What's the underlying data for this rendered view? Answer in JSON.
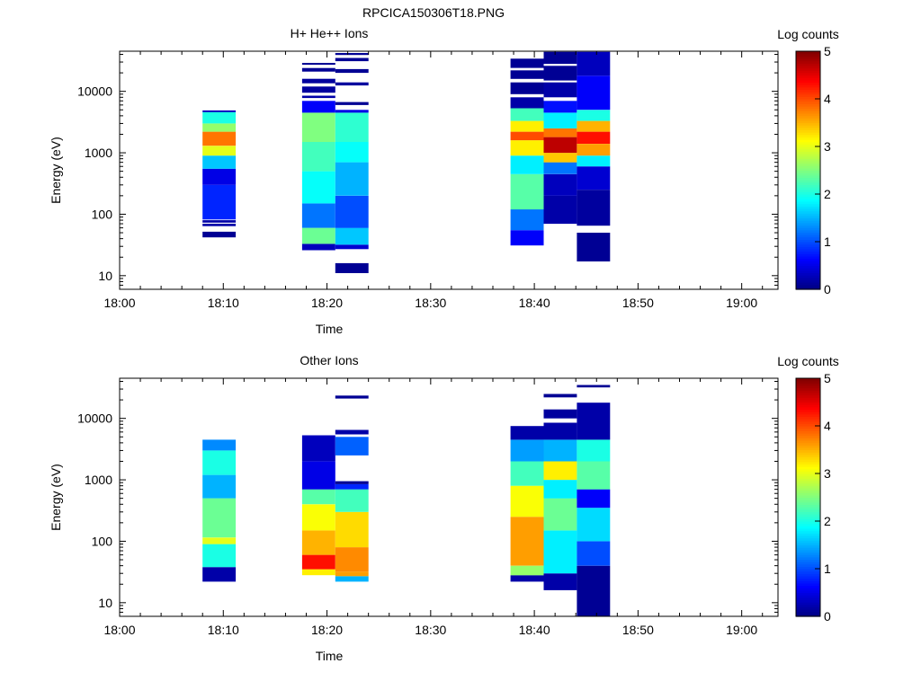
{
  "figure": {
    "title": "RPCICA150306T18.PNG"
  },
  "colors": {
    "background": "#ffffff",
    "axis": "#000000",
    "colormap": "jet"
  },
  "chart_data": [
    {
      "type": "heatmap",
      "title": "H+ He++ Ions",
      "xlabel": "Time",
      "ylabel": "Energy (eV)",
      "x_ticks": [
        "18:00",
        "18:10",
        "18:20",
        "18:30",
        "18:40",
        "18:50",
        "19:00"
      ],
      "x_range_minutes": [
        0,
        63.5
      ],
      "y_scale": "log",
      "y_ticks": [
        "10",
        "100",
        "1000",
        "10000"
      ],
      "y_range_eV": [
        6,
        45000
      ],
      "colorbar": {
        "label": "Log counts",
        "ticks": [
          "0",
          "1",
          "2",
          "3",
          "4",
          "5"
        ],
        "range": [
          0,
          5
        ]
      },
      "columns": [
        {
          "t_start": 8.0,
          "t_end": 11.2,
          "segments": [
            {
              "e_lo": 42,
              "e_hi": 52,
              "v": 0.1
            },
            {
              "e_lo": 64,
              "e_hi": 70,
              "v": 0.2
            },
            {
              "e_lo": 73,
              "e_hi": 80,
              "v": 0.2
            },
            {
              "e_lo": 82,
              "e_hi": 300,
              "v": 0.8
            },
            {
              "e_lo": 300,
              "e_hi": 550,
              "v": 0.5
            },
            {
              "e_lo": 550,
              "e_hi": 900,
              "v": 1.6
            },
            {
              "e_lo": 900,
              "e_hi": 1300,
              "v": 3.0
            },
            {
              "e_lo": 1300,
              "e_hi": 2200,
              "v": 3.8
            },
            {
              "e_lo": 2200,
              "e_hi": 3000,
              "v": 2.6
            },
            {
              "e_lo": 3000,
              "e_hi": 4600,
              "v": 2.0
            },
            {
              "e_lo": 4600,
              "e_hi": 4900,
              "v": 0.3
            }
          ]
        },
        {
          "t_start": 17.6,
          "t_end": 20.8,
          "segments": [
            {
              "e_lo": 26,
              "e_hi": 33,
              "v": 0.3
            },
            {
              "e_lo": 33,
              "e_hi": 60,
              "v": 2.4
            },
            {
              "e_lo": 60,
              "e_hi": 150,
              "v": 1.2
            },
            {
              "e_lo": 150,
              "e_hi": 500,
              "v": 1.9
            },
            {
              "e_lo": 500,
              "e_hi": 1500,
              "v": 2.2
            },
            {
              "e_lo": 1500,
              "e_hi": 4500,
              "v": 2.5
            },
            {
              "e_lo": 4500,
              "e_hi": 7000,
              "v": 0.6
            },
            {
              "e_lo": 7800,
              "e_hi": 8500,
              "v": 0.2
            },
            {
              "e_lo": 9500,
              "e_hi": 12000,
              "v": 0.15
            },
            {
              "e_lo": 13500,
              "e_hi": 16000,
              "v": 0.15
            },
            {
              "e_lo": 21000,
              "e_hi": 24000,
              "v": 0.1
            },
            {
              "e_lo": 27000,
              "e_hi": 29000,
              "v": 0.1
            }
          ]
        },
        {
          "t_start": 20.8,
          "t_end": 24.0,
          "segments": [
            {
              "e_lo": 11,
              "e_hi": 16,
              "v": 0.1
            },
            {
              "e_lo": 27,
              "e_hi": 32,
              "v": 0.4
            },
            {
              "e_lo": 32,
              "e_hi": 60,
              "v": 1.6
            },
            {
              "e_lo": 60,
              "e_hi": 200,
              "v": 1.0
            },
            {
              "e_lo": 200,
              "e_hi": 700,
              "v": 1.5
            },
            {
              "e_lo": 700,
              "e_hi": 1500,
              "v": 1.9
            },
            {
              "e_lo": 1500,
              "e_hi": 4500,
              "v": 2.1
            },
            {
              "e_lo": 4500,
              "e_hi": 5000,
              "v": 0.5
            },
            {
              "e_lo": 6000,
              "e_hi": 6700,
              "v": 0.1
            },
            {
              "e_lo": 12500,
              "e_hi": 14000,
              "v": 0.15
            },
            {
              "e_lo": 20000,
              "e_hi": 23000,
              "v": 0.1
            },
            {
              "e_lo": 31000,
              "e_hi": 35000,
              "v": 0.1
            },
            {
              "e_lo": 39000,
              "e_hi": 42000,
              "v": 0.1
            }
          ]
        },
        {
          "t_start": 37.7,
          "t_end": 40.9,
          "segments": [
            {
              "e_lo": 31,
              "e_hi": 55,
              "v": 0.6
            },
            {
              "e_lo": 55,
              "e_hi": 120,
              "v": 1.2
            },
            {
              "e_lo": 120,
              "e_hi": 450,
              "v": 2.3
            },
            {
              "e_lo": 450,
              "e_hi": 900,
              "v": 1.8
            },
            {
              "e_lo": 900,
              "e_hi": 1600,
              "v": 3.2
            },
            {
              "e_lo": 1600,
              "e_hi": 2200,
              "v": 4.0
            },
            {
              "e_lo": 2200,
              "e_hi": 3300,
              "v": 3.2
            },
            {
              "e_lo": 3300,
              "e_hi": 5300,
              "v": 2.2
            },
            {
              "e_lo": 5300,
              "e_hi": 8000,
              "v": 0.2
            },
            {
              "e_lo": 9000,
              "e_hi": 14000,
              "v": 0.1
            },
            {
              "e_lo": 16000,
              "e_hi": 22000,
              "v": 0.1
            },
            {
              "e_lo": 24000,
              "e_hi": 34000,
              "v": 0.1
            }
          ]
        },
        {
          "t_start": 40.9,
          "t_end": 44.1,
          "segments": [
            {
              "e_lo": 70,
              "e_hi": 200,
              "v": 0.2
            },
            {
              "e_lo": 200,
              "e_hi": 450,
              "v": 0.3
            },
            {
              "e_lo": 450,
              "e_hi": 700,
              "v": 1.2
            },
            {
              "e_lo": 700,
              "e_hi": 1000,
              "v": 3.4
            },
            {
              "e_lo": 1000,
              "e_hi": 1800,
              "v": 4.7
            },
            {
              "e_lo": 1800,
              "e_hi": 2500,
              "v": 3.8
            },
            {
              "e_lo": 2500,
              "e_hi": 4500,
              "v": 1.8
            },
            {
              "e_lo": 4500,
              "e_hi": 7000,
              "v": 0.7
            },
            {
              "e_lo": 8000,
              "e_hi": 14000,
              "v": 0.2
            },
            {
              "e_lo": 15000,
              "e_hi": 26000,
              "v": 0.1
            },
            {
              "e_lo": 28000,
              "e_hi": 44000,
              "v": 0.1
            }
          ]
        },
        {
          "t_start": 44.1,
          "t_end": 47.3,
          "segments": [
            {
              "e_lo": 17,
              "e_hi": 50,
              "v": 0.1
            },
            {
              "e_lo": 65,
              "e_hi": 250,
              "v": 0.15
            },
            {
              "e_lo": 250,
              "e_hi": 600,
              "v": 0.4
            },
            {
              "e_lo": 600,
              "e_hi": 900,
              "v": 1.8
            },
            {
              "e_lo": 900,
              "e_hi": 1400,
              "v": 3.6
            },
            {
              "e_lo": 1400,
              "e_hi": 2200,
              "v": 4.3
            },
            {
              "e_lo": 2200,
              "e_hi": 3300,
              "v": 3.5
            },
            {
              "e_lo": 3300,
              "e_hi": 5000,
              "v": 2.0
            },
            {
              "e_lo": 5000,
              "e_hi": 18000,
              "v": 0.6
            },
            {
              "e_lo": 18000,
              "e_hi": 44000,
              "v": 0.3
            }
          ]
        }
      ]
    },
    {
      "type": "heatmap",
      "title": "Other Ions",
      "xlabel": "Time",
      "ylabel": "Energy (eV)",
      "x_ticks": [
        "18:00",
        "18:10",
        "18:20",
        "18:30",
        "18:40",
        "18:50",
        "19:00"
      ],
      "x_range_minutes": [
        0,
        63.5
      ],
      "y_scale": "log",
      "y_ticks": [
        "10",
        "100",
        "1000",
        "10000"
      ],
      "y_range_eV": [
        6,
        45000
      ],
      "colorbar": {
        "label": "Log counts",
        "ticks": [
          "0",
          "1",
          "2",
          "3",
          "4",
          "5"
        ],
        "range": [
          0,
          5
        ]
      },
      "columns": [
        {
          "t_start": 8.0,
          "t_end": 11.2,
          "segments": [
            {
              "e_lo": 22,
              "e_hi": 38,
              "v": 0.2
            },
            {
              "e_lo": 38,
              "e_hi": 90,
              "v": 2.0
            },
            {
              "e_lo": 90,
              "e_hi": 115,
              "v": 3.0
            },
            {
              "e_lo": 115,
              "e_hi": 500,
              "v": 2.4
            },
            {
              "e_lo": 500,
              "e_hi": 1200,
              "v": 1.5
            },
            {
              "e_lo": 1200,
              "e_hi": 3000,
              "v": 2.0
            },
            {
              "e_lo": 3000,
              "e_hi": 4500,
              "v": 1.3
            }
          ]
        },
        {
          "t_start": 17.6,
          "t_end": 20.8,
          "segments": [
            {
              "e_lo": 28,
              "e_hi": 35,
              "v": 3.2
            },
            {
              "e_lo": 35,
              "e_hi": 60,
              "v": 4.3
            },
            {
              "e_lo": 60,
              "e_hi": 150,
              "v": 3.5
            },
            {
              "e_lo": 150,
              "e_hi": 400,
              "v": 3.1
            },
            {
              "e_lo": 400,
              "e_hi": 700,
              "v": 2.3
            },
            {
              "e_lo": 700,
              "e_hi": 2000,
              "v": 0.5
            },
            {
              "e_lo": 2000,
              "e_hi": 5300,
              "v": 0.3
            }
          ]
        },
        {
          "t_start": 20.8,
          "t_end": 24.0,
          "segments": [
            {
              "e_lo": 22,
              "e_hi": 27,
              "v": 1.5
            },
            {
              "e_lo": 27,
              "e_hi": 32,
              "v": 3.6
            },
            {
              "e_lo": 32,
              "e_hi": 80,
              "v": 3.7
            },
            {
              "e_lo": 80,
              "e_hi": 300,
              "v": 3.3
            },
            {
              "e_lo": 300,
              "e_hi": 700,
              "v": 2.2
            },
            {
              "e_lo": 700,
              "e_hi": 850,
              "v": 0.8
            },
            {
              "e_lo": 850,
              "e_hi": 950,
              "v": 0.1
            },
            {
              "e_lo": 2500,
              "e_hi": 5000,
              "v": 1.1
            },
            {
              "e_lo": 5500,
              "e_hi": 6500,
              "v": 0.2
            },
            {
              "e_lo": 21000,
              "e_hi": 23500,
              "v": 0.1
            }
          ]
        },
        {
          "t_start": 37.7,
          "t_end": 40.9,
          "segments": [
            {
              "e_lo": 22,
              "e_hi": 28,
              "v": 0.2
            },
            {
              "e_lo": 28,
              "e_hi": 40,
              "v": 2.6
            },
            {
              "e_lo": 40,
              "e_hi": 250,
              "v": 3.6
            },
            {
              "e_lo": 250,
              "e_hi": 800,
              "v": 3.1
            },
            {
              "e_lo": 800,
              "e_hi": 2000,
              "v": 2.2
            },
            {
              "e_lo": 2000,
              "e_hi": 4500,
              "v": 1.4
            },
            {
              "e_lo": 4500,
              "e_hi": 7500,
              "v": 0.2
            }
          ]
        },
        {
          "t_start": 40.9,
          "t_end": 44.1,
          "segments": [
            {
              "e_lo": 16,
              "e_hi": 30,
              "v": 0.2
            },
            {
              "e_lo": 30,
              "e_hi": 150,
              "v": 1.8
            },
            {
              "e_lo": 150,
              "e_hi": 500,
              "v": 2.4
            },
            {
              "e_lo": 500,
              "e_hi": 1000,
              "v": 1.8
            },
            {
              "e_lo": 1000,
              "e_hi": 2000,
              "v": 3.2
            },
            {
              "e_lo": 2000,
              "e_hi": 4500,
              "v": 1.5
            },
            {
              "e_lo": 4500,
              "e_hi": 8500,
              "v": 0.2
            },
            {
              "e_lo": 10000,
              "e_hi": 14000,
              "v": 0.15
            },
            {
              "e_lo": 22000,
              "e_hi": 25000,
              "v": 0.1
            }
          ]
        },
        {
          "t_start": 44.1,
          "t_end": 47.3,
          "segments": [
            {
              "e_lo": 6,
              "e_hi": 40,
              "v": 0.1
            },
            {
              "e_lo": 40,
              "e_hi": 100,
              "v": 1.0
            },
            {
              "e_lo": 100,
              "e_hi": 350,
              "v": 1.7
            },
            {
              "e_lo": 350,
              "e_hi": 700,
              "v": 0.6
            },
            {
              "e_lo": 700,
              "e_hi": 2000,
              "v": 2.3
            },
            {
              "e_lo": 2000,
              "e_hi": 4500,
              "v": 2.0
            },
            {
              "e_lo": 4500,
              "e_hi": 18000,
              "v": 0.2
            },
            {
              "e_lo": 32000,
              "e_hi": 35000,
              "v": 0.1
            }
          ]
        }
      ]
    }
  ]
}
